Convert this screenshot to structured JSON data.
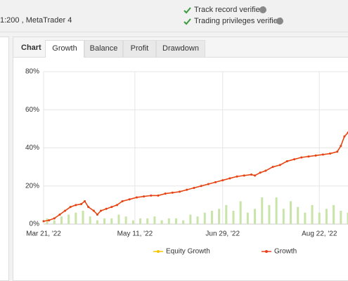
{
  "header": {
    "account": "1:200 , MetaTrader 4",
    "checks": [
      "Track record verified",
      "Trading privileges verified"
    ]
  },
  "tabs": {
    "label": "Chart",
    "items": [
      "Growth",
      "Balance",
      "Profit",
      "Drawdown"
    ]
  },
  "chart": {
    "type": "line",
    "x": [
      0,
      3,
      6,
      9,
      12,
      15,
      18,
      21,
      23,
      25,
      28,
      30,
      32,
      35,
      38,
      41,
      44,
      48,
      52,
      56,
      60,
      64,
      68,
      72,
      76,
      80,
      84,
      88,
      92,
      96,
      100,
      104,
      108,
      112,
      116,
      118,
      121,
      124,
      128,
      132,
      136,
      140,
      144,
      148,
      152,
      156,
      160,
      164,
      166,
      168,
      170
    ],
    "series": [
      {
        "name": "Equity Growth",
        "color": "#f5c400",
        "values": [
          1.5,
          2,
          3,
          5,
          7,
          9,
          10,
          10.5,
          12,
          9,
          7,
          5,
          7,
          8,
          9,
          10,
          12,
          13,
          14,
          14.5,
          15,
          15,
          16,
          16.5,
          17,
          18,
          19,
          20,
          21,
          22,
          23,
          24,
          25,
          25.5,
          26,
          25.5,
          27,
          28,
          30,
          31,
          33,
          34,
          35,
          35.5,
          36,
          36.5,
          37,
          38,
          41,
          46,
          48
        ]
      },
      {
        "name": "Growth",
        "color": "#e8401c",
        "values": [
          1.5,
          2,
          3,
          5,
          7,
          9,
          10,
          10.5,
          12,
          9,
          7,
          5,
          7,
          8,
          9,
          10,
          12,
          13,
          14,
          14.5,
          15,
          15,
          16,
          16.5,
          17,
          18,
          19,
          20,
          21,
          22,
          23,
          24,
          25,
          25.5,
          26,
          25.5,
          27,
          28,
          30,
          31,
          33,
          34,
          35,
          35.5,
          36,
          36.5,
          37,
          38,
          41,
          46,
          48
        ]
      }
    ],
    "bars": {
      "color": "#c8e4a8",
      "x": [
        2,
        6,
        10,
        14,
        18,
        22,
        26,
        30,
        34,
        38,
        42,
        46,
        50,
        54,
        58,
        62,
        66,
        70,
        74,
        78,
        82,
        86,
        90,
        94,
        98,
        102,
        106,
        110,
        114,
        118,
        122,
        126,
        130,
        134,
        138,
        142,
        146,
        150,
        154,
        158,
        162,
        166,
        170
      ],
      "values": [
        3,
        2,
        4,
        5,
        6,
        7,
        4,
        2,
        3,
        3,
        5,
        4,
        2,
        3,
        3,
        4,
        2,
        3,
        3,
        2,
        5,
        4,
        6,
        7,
        8,
        10,
        7,
        12,
        6,
        8,
        14,
        10,
        14,
        8,
        12,
        9,
        6,
        10,
        6,
        8,
        10,
        7,
        6
      ]
    },
    "xlim": [
      0,
      170
    ],
    "xticks": [
      {
        "value": 0,
        "label": "Mar 21, '22"
      },
      {
        "value": 51,
        "label": "May 11, '22"
      },
      {
        "value": 100,
        "label": "Jun 29, '22"
      },
      {
        "value": 154,
        "label": "Aug 22, '22"
      }
    ],
    "ylim": [
      0,
      80
    ],
    "yticks": [
      {
        "value": 0,
        "label": "0%"
      },
      {
        "value": 20,
        "label": "20%"
      },
      {
        "value": 40,
        "label": "40%"
      },
      {
        "value": 60,
        "label": "60%"
      },
      {
        "value": 80,
        "label": "80%"
      }
    ],
    "grid": true
  }
}
